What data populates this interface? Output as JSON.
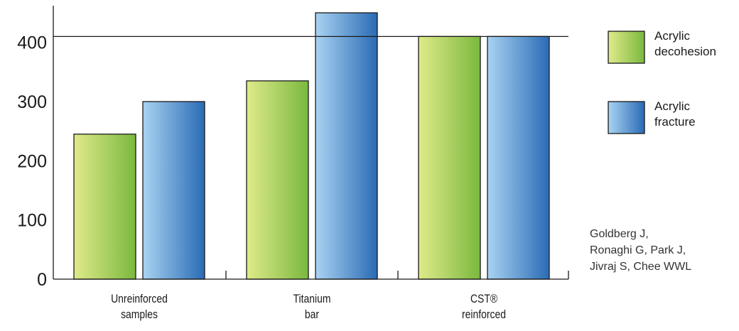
{
  "chart_data": {
    "type": "bar",
    "categories": [
      [
        "Unreinforced",
        "samples"
      ],
      [
        "Titanium",
        "bar"
      ],
      [
        "CST®",
        "reinforced"
      ]
    ],
    "series": [
      {
        "name": [
          "Acrylic",
          "decohesion"
        ],
        "values": [
          245,
          335,
          410
        ]
      },
      {
        "name": [
          "Acrylic",
          "fracture"
        ],
        "values": [
          300,
          450,
          410
        ]
      }
    ],
    "yticks": [
      0,
      100,
      200,
      300,
      400
    ],
    "ylim": [
      0,
      450
    ],
    "reference_line": 410,
    "grid": false,
    "legend_position": "right",
    "colors": {
      "series_0": [
        "#e0ea8a",
        "#7ab93e"
      ],
      "series_1": [
        "#a9d3f2",
        "#2a6bb5"
      ]
    }
  },
  "citation": {
    "lines": [
      "Goldberg J,",
      "Ronaghi G, Park J,",
      "Jivraj S, Chee WWL"
    ]
  }
}
